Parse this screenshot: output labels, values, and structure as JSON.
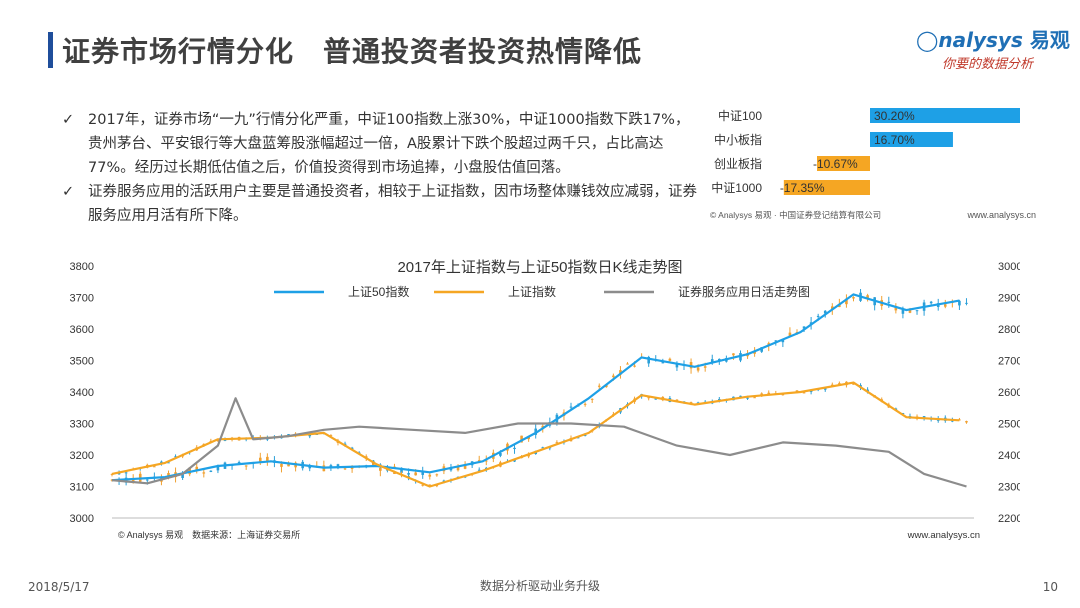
{
  "page": {
    "title": "证券市场行情分化　普通投资者投资热情降低",
    "logo_en": "nalysys",
    "logo_cn": "易观",
    "logo_slogan": "你要的数据分析",
    "bullets": [
      "2017年，证券市场“一九”行情分化严重，中证100指数上涨30%，中证1000指数下跌17%，贵州茅台、平安银行等大盘蓝筹股涨幅超过一倍，A股累计下跌个股超过两千只，占比高达77%。经历过长期低估值之后，价值投资得到市场追捧，小盘股估值回落。",
      "证券服务应用的活跃用户主要是普通投资者，相较于上证指数，因市场整体赚钱效应减弱，证券服务应用月活有所下降。"
    ],
    "footer_date": "2018/5/17",
    "footer_center": "数据分析驱动业务升级",
    "footer_page": "10"
  },
  "colors": {
    "title": "#404040",
    "accent": "#1f4e9b",
    "positive_bar": "#1ea0e6",
    "negative_bar": "#f5a623",
    "sz50": "#1ea0e6",
    "sh": "#f5a623",
    "app": "#8c8c8c",
    "candle_up": "#f0a030",
    "candle_down": "#2a9fd8"
  },
  "chart_data": [
    {
      "type": "bar",
      "orientation": "horizontal",
      "categories": [
        "中证100",
        "中小板指",
        "创业板指",
        "中证1000"
      ],
      "values": [
        30.2,
        16.7,
        -10.67,
        -17.35
      ],
      "value_labels": [
        "30.20%",
        "16.70%",
        "-10.67%",
        "-17.35%"
      ],
      "source": "© Analysys 易观 · 中国证券登记结算有限公司",
      "site": "www.analysys.cn"
    },
    {
      "type": "line",
      "title": "2017年上证指数与上证50指数日K线走势图",
      "yleft_ticks": [
        3000,
        3100,
        3200,
        3300,
        3400,
        3500,
        3600,
        3700,
        3800
      ],
      "yright_ticks": [
        2200,
        2300,
        2400,
        2500,
        2600,
        2700,
        2800,
        2900,
        3000
      ],
      "yleft_lim": [
        3000,
        3800
      ],
      "yright_lim": [
        2200,
        3000
      ],
      "n_days": 244,
      "series": [
        {
          "name": "上证50指数",
          "axis": "right",
          "x": [
            0,
            15,
            30,
            45,
            60,
            75,
            90,
            105,
            120,
            135,
            150,
            165,
            180,
            195,
            210,
            225,
            240
          ],
          "values": [
            2320,
            2330,
            2365,
            2380,
            2360,
            2365,
            2345,
            2380,
            2470,
            2580,
            2710,
            2680,
            2720,
            2790,
            2910,
            2860,
            2890
          ]
        },
        {
          "name": "上证指数",
          "axis": "left",
          "x": [
            0,
            15,
            30,
            45,
            60,
            75,
            90,
            105,
            120,
            135,
            150,
            165,
            180,
            195,
            210,
            225,
            240
          ],
          "values": [
            3140,
            3175,
            3250,
            3255,
            3270,
            3170,
            3100,
            3150,
            3210,
            3270,
            3390,
            3360,
            3385,
            3400,
            3430,
            3320,
            3310
          ]
        },
        {
          "name": "证券服务应用日活走势图",
          "axis": "left",
          "x": [
            0,
            10,
            20,
            30,
            35,
            40,
            50,
            60,
            70,
            85,
            100,
            115,
            130,
            145,
            160,
            175,
            190,
            205,
            220,
            230,
            242
          ],
          "values": [
            3120,
            3110,
            3140,
            3230,
            3380,
            3250,
            3260,
            3280,
            3290,
            3280,
            3270,
            3300,
            3300,
            3290,
            3230,
            3200,
            3240,
            3230,
            3210,
            3140,
            3100
          ]
        }
      ],
      "legend_position": "top",
      "source": "© Analysys 易观　数据来源：上海证券交易所",
      "site": "www.analysys.cn"
    }
  ]
}
